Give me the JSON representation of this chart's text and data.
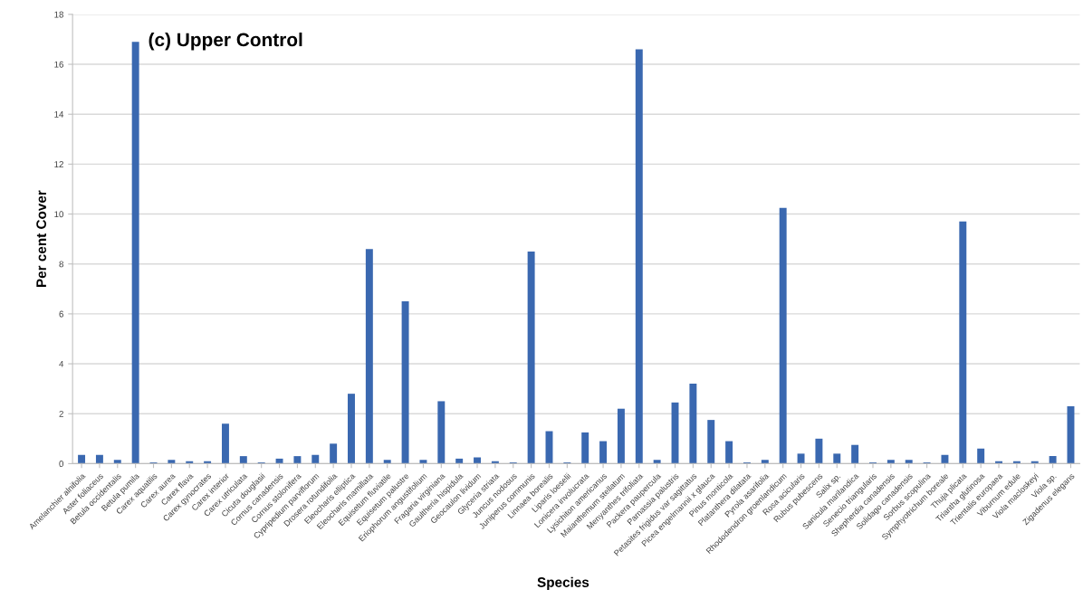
{
  "chart_data": {
    "type": "bar",
    "title": "(c) Upper Control",
    "xlabel": "Species",
    "ylabel": "Per cent Cover",
    "categories": [
      "Amelanchier alnifolia",
      "Aster foliaceus",
      "Betula occidentalis",
      "Betula pumila",
      "Carex aquatilis",
      "Carex aurea",
      "Carex flava",
      "Carex gynocrates",
      "Carex interior",
      "Carex utriculata",
      "Cicuta douglasii",
      "Cornus canadensis",
      "Cornus stolonifera",
      "Cypripedium parviflorum",
      "Drosera rotundifolia",
      "Eleocharis elliptica",
      "Eleocharis mamillata",
      "Equisetum fluviatile",
      "Equisetum palustre",
      "Eriophorum angustifolium",
      "Fragaria virginiana",
      "Gaultheria hispidula",
      "Geocaulon lividum",
      "Glyceria striata",
      "Juncus nodosus",
      "Juniperus communis",
      "Linnaea borealis",
      "Liparis loeselii",
      "Lonicera involucrata",
      "Lysichiton americanus",
      "Maianthemum stellatum",
      "Menyanthes trifoliata",
      "Packera paupercula",
      "Parnassia palustris",
      "Petasites frigidus var sagittatus",
      "Picea engelmannii x glauca",
      "Pinus monticola",
      "Platanthera dilatata",
      "Pyrola asarifolia",
      "Rhododendron groenlandicum",
      "Rosa acicularis",
      "Rubus pubescens",
      "Salix sp.",
      "Sanicula marilandica",
      "Senecio triangularis",
      "Shepherdia canadensis",
      "Solidago canadensis",
      "Sorbus scopulina",
      "Symphyotrichum boreale",
      "Thuja plicata",
      "Triantha glutinosa",
      "Trientalis europaea",
      "Viburnum edule",
      "Viola macloskeyi",
      "Viola sp.",
      "Zigadenus elegans"
    ],
    "values": [
      0.35,
      0.35,
      0.15,
      16.9,
      0.05,
      0.15,
      0.1,
      0.1,
      1.6,
      0.3,
      0.05,
      0.2,
      0.3,
      0.35,
      0.8,
      2.8,
      8.6,
      0.15,
      6.5,
      0.15,
      2.5,
      0.2,
      0.25,
      0.1,
      0.05,
      8.5,
      1.3,
      0.05,
      1.25,
      0.9,
      2.2,
      16.6,
      0.15,
      2.45,
      3.2,
      1.75,
      0.9,
      0.05,
      0.15,
      10.25,
      0.4,
      1.0,
      0.4,
      0.75,
      0.05,
      0.15,
      0.15,
      0.05,
      0.35,
      9.7,
      0.6,
      0.1,
      0.1,
      0.1,
      0.3,
      2.3
    ],
    "color": "#3a68b0",
    "ylim": [
      0,
      18
    ],
    "yticks": [
      0,
      2,
      4,
      6,
      8,
      10,
      12,
      14,
      16,
      18
    ],
    "grid": "y",
    "legend": false
  }
}
